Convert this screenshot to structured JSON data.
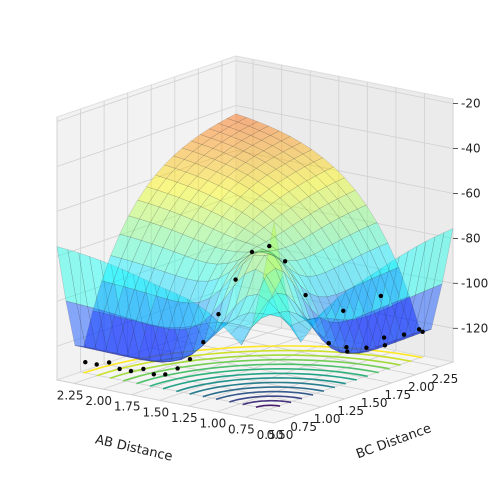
{
  "chart_data": {
    "type": "surface3d",
    "xlabel": "AB Distance",
    "ylabel": "BC Distance",
    "zlabel": "",
    "x_ticks": [
      "0.50",
      "0.75",
      "1.00",
      "1.25",
      "1.50",
      "1.75",
      "2.00",
      "2.25"
    ],
    "y_ticks": [
      "0.50",
      "0.75",
      "1.00",
      "1.25",
      "1.50",
      "1.75",
      "2.00",
      "2.25"
    ],
    "z_ticks": [
      "-20",
      "-40",
      "-60",
      "-80",
      "-100",
      "-120"
    ],
    "xlim": [
      0.5,
      2.4
    ],
    "ylim": [
      0.5,
      2.4
    ],
    "zlim": [
      -135,
      -18
    ],
    "surface_colormap": "jet",
    "contour_colormap": "viridis",
    "trajectory_color": "#000000",
    "trajectory": [
      [
        2.35,
        0.74
      ],
      [
        2.25,
        0.74
      ],
      [
        2.15,
        0.75
      ],
      [
        2.05,
        0.74
      ],
      [
        1.95,
        0.74
      ],
      [
        1.85,
        0.75
      ],
      [
        1.75,
        0.74
      ],
      [
        1.65,
        0.74
      ],
      [
        1.55,
        0.75
      ],
      [
        1.45,
        0.76
      ],
      [
        1.35,
        0.78
      ],
      [
        1.25,
        0.82
      ],
      [
        1.15,
        0.88
      ],
      [
        1.08,
        0.97
      ],
      [
        1.02,
        1.08
      ],
      [
        0.98,
        1.2
      ],
      [
        0.9,
        1.32
      ],
      [
        0.78,
        1.42
      ],
      [
        0.7,
        1.52
      ],
      [
        0.79,
        1.62
      ],
      [
        0.9,
        1.72
      ],
      [
        0.78,
        1.82
      ],
      [
        0.7,
        1.92
      ],
      [
        0.79,
        2.02
      ],
      [
        0.9,
        2.12
      ],
      [
        0.78,
        2.22
      ],
      [
        0.7,
        2.32
      ],
      [
        0.78,
        2.38
      ]
    ],
    "grid": true
  }
}
